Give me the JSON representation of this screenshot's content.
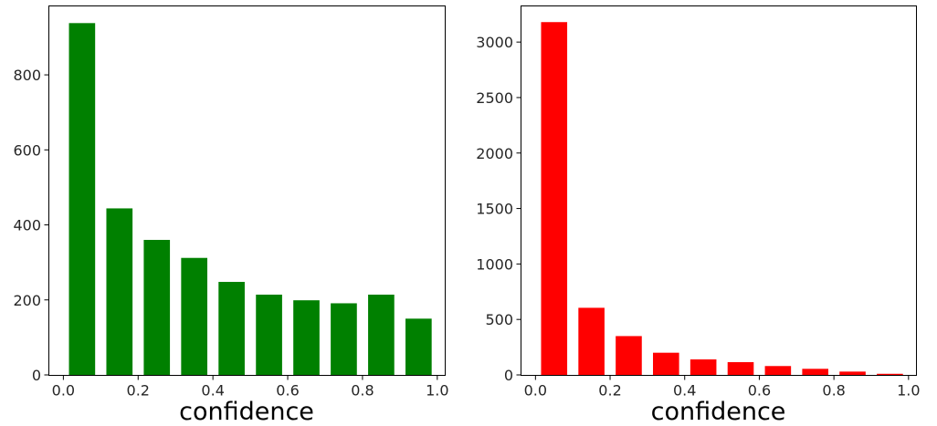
{
  "chart_data": [
    {
      "type": "bar",
      "color": "#008000",
      "x": [
        0.05,
        0.15,
        0.25,
        0.35,
        0.45,
        0.55,
        0.65,
        0.75,
        0.85,
        0.95
      ],
      "values": [
        938,
        444,
        360,
        312,
        248,
        214,
        199,
        191,
        214,
        150
      ],
      "bar_width": 0.07,
      "xlim": [
        -0.04,
        1.02
      ],
      "ylim": [
        0,
        985
      ],
      "xticks": [
        0.0,
        0.2,
        0.4,
        0.6,
        0.8,
        1.0
      ],
      "xtick_labels": [
        "0.0",
        "0.2",
        "0.4",
        "0.6",
        "0.8",
        "1.0"
      ],
      "yticks": [
        0,
        200,
        400,
        600,
        800
      ],
      "ytick_labels": [
        "0",
        "200",
        "400",
        "600",
        "800"
      ],
      "xlabel": "confidence",
      "grid": false
    },
    {
      "type": "bar",
      "color": "#ff0000",
      "x": [
        0.05,
        0.15,
        0.25,
        0.35,
        0.45,
        0.55,
        0.65,
        0.75,
        0.85,
        0.95
      ],
      "values": [
        3180,
        605,
        350,
        200,
        140,
        115,
        80,
        55,
        30,
        10
      ],
      "bar_width": 0.07,
      "xlim": [
        -0.04,
        1.02
      ],
      "ylim": [
        0,
        3330
      ],
      "xticks": [
        0.0,
        0.2,
        0.4,
        0.6,
        0.8,
        1.0
      ],
      "xtick_labels": [
        "0.0",
        "0.2",
        "0.4",
        "0.6",
        "0.8",
        "1.0"
      ],
      "yticks": [
        0,
        500,
        1000,
        1500,
        2000,
        2500,
        3000
      ],
      "ytick_labels": [
        "0",
        "500",
        "1000",
        "1500",
        "2000",
        "2500",
        "3000"
      ],
      "xlabel": "confidence",
      "grid": false
    }
  ]
}
